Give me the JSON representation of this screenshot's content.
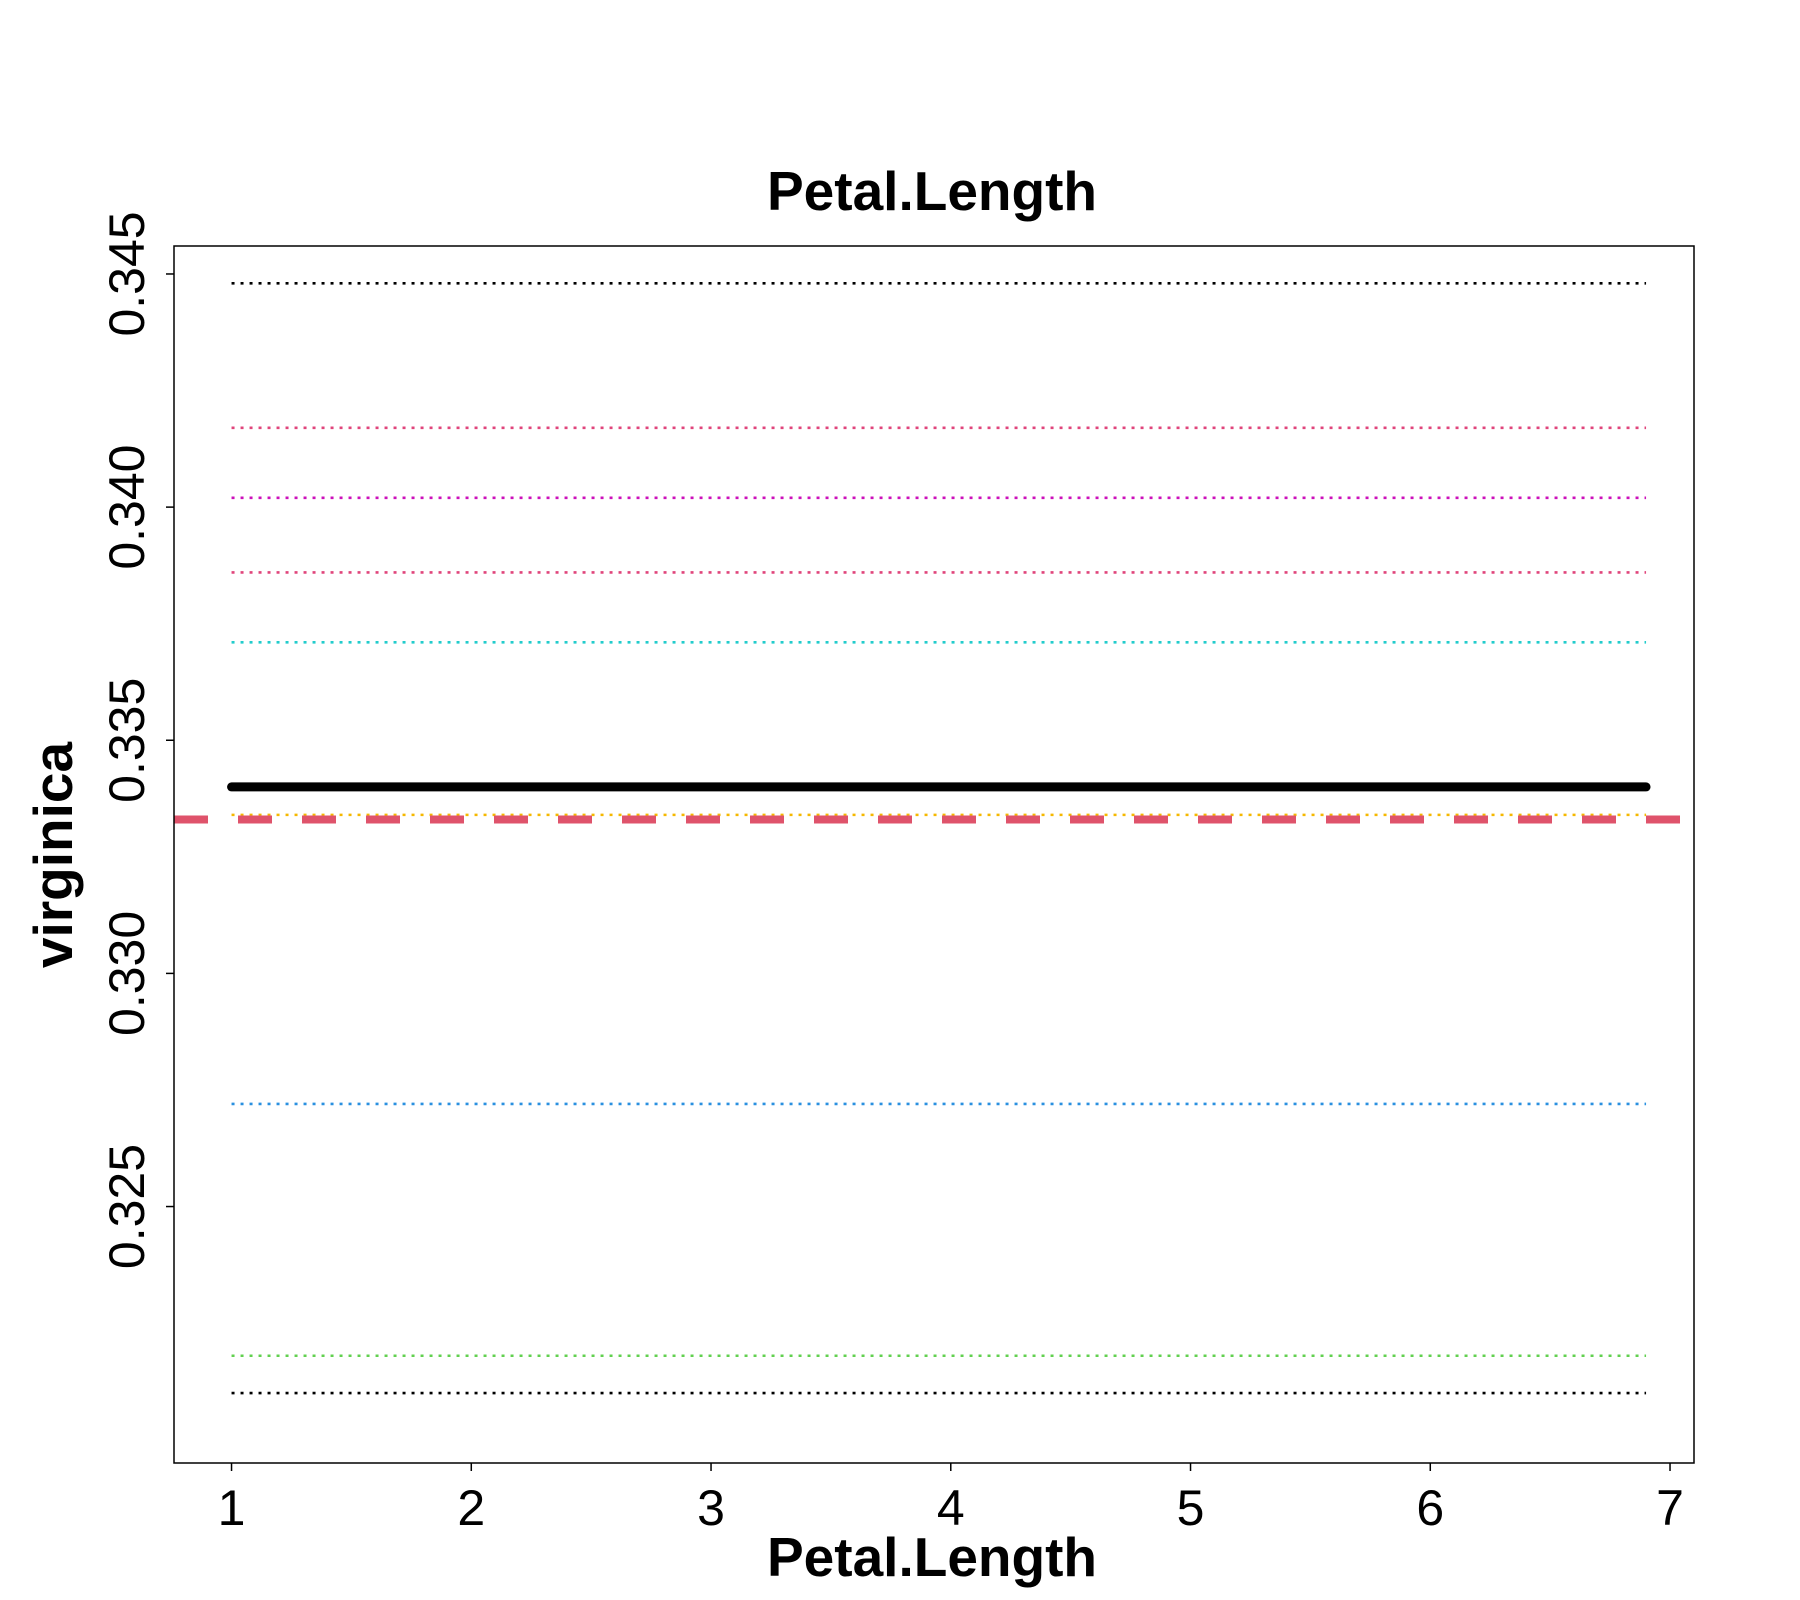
{
  "chart_data": {
    "type": "line",
    "title": "Petal.Length",
    "xlabel": "Petal.Length",
    "ylabel": "virginica",
    "xlim": [
      0.76,
      7.1
    ],
    "ylim": [
      0.3195,
      0.3456
    ],
    "x_ticks": [
      "1",
      "2",
      "3",
      "4",
      "5",
      "6",
      "7"
    ],
    "y_ticks": [
      "0.325",
      "0.330",
      "0.335",
      "0.340",
      "0.345"
    ],
    "x_range": [
      1.0,
      6.9
    ],
    "grid": false,
    "reference_line": {
      "y": 0.3333,
      "style": "dashed",
      "color": "#df536b"
    },
    "series": [
      {
        "values": [
          0.3448,
          0.3448
        ],
        "style": "dotted",
        "color": "#000000"
      },
      {
        "values": [
          0.3417,
          0.3417
        ],
        "style": "dotted",
        "color": "#e0457b"
      },
      {
        "values": [
          0.3402,
          0.3402
        ],
        "style": "dotted",
        "color": "#cc11bb"
      },
      {
        "values": [
          0.3386,
          0.3386
        ],
        "style": "dotted",
        "color": "#e0457b"
      },
      {
        "values": [
          0.3371,
          0.3371
        ],
        "style": "dotted",
        "color": "#22cccc"
      },
      {
        "values": [
          0.3334,
          0.3334
        ],
        "style": "dotted",
        "color": "#f5b800"
      },
      {
        "values": [
          0.3272,
          0.3272
        ],
        "style": "dotted",
        "color": "#2a90e0"
      },
      {
        "values": [
          0.3218,
          0.3218
        ],
        "style": "dotted",
        "color": "#61d04f"
      },
      {
        "values": [
          0.321,
          0.321
        ],
        "style": "dotted",
        "color": "#000000"
      },
      {
        "values": [
          0.334,
          0.334
        ],
        "style": "solid",
        "color": "#000000"
      }
    ]
  }
}
